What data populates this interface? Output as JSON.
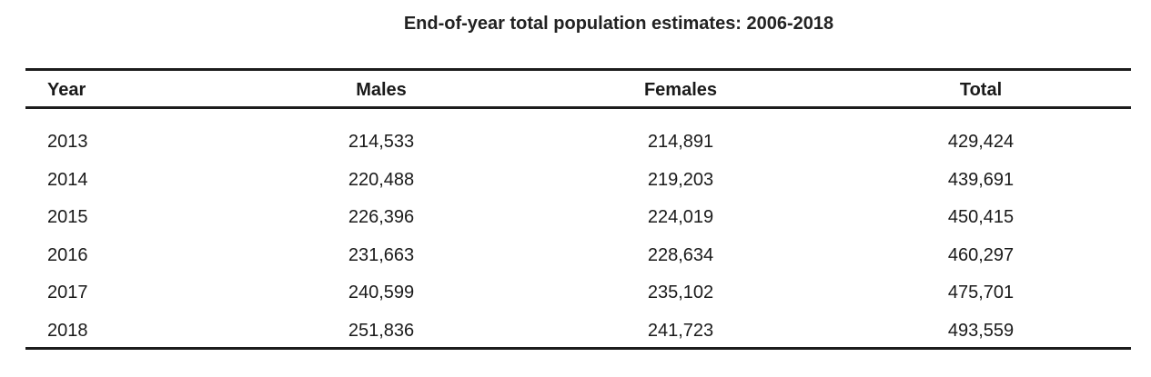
{
  "chart_data": {
    "type": "table",
    "title": "End-of-year total population estimates: 2006-2018",
    "columns": [
      "Year",
      "Males",
      "Females",
      "Total"
    ],
    "rows": [
      [
        "2013",
        "214,533",
        "214,891",
        "429,424"
      ],
      [
        "2014",
        "220,488",
        "219,203",
        "439,691"
      ],
      [
        "2015",
        "226,396",
        "224,019",
        "450,415"
      ],
      [
        "2016",
        "231,663",
        "228,634",
        "460,297"
      ],
      [
        "2017",
        "240,599",
        "235,102",
        "475,701"
      ],
      [
        "2018",
        "251,836",
        "241,723",
        "493,559"
      ]
    ]
  }
}
